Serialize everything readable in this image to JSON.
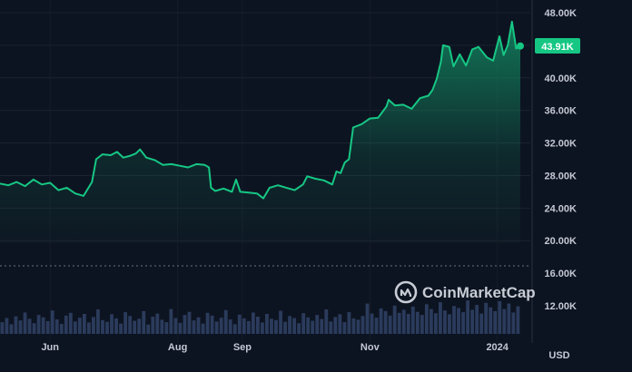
{
  "chart_data": {
    "type": "area",
    "currency_label": "USD",
    "watermark": "CoinMarketCap",
    "accent_color": "#16c784",
    "background_color": "#0d1421",
    "last_price_label": "43.91K",
    "last_price": 43910,
    "y_ticks": [
      "48.00K",
      "44.00K",
      "40.00K",
      "36.00K",
      "32.00K",
      "28.00K",
      "24.00K",
      "20.00K",
      "16.00K",
      "12.00K"
    ],
    "y_tick_values": [
      48000,
      44000,
      40000,
      36000,
      32000,
      28000,
      24000,
      20000,
      16000,
      12000
    ],
    "x_ticks": [
      "Jun",
      "Aug",
      "Sep",
      "Nov",
      "2024"
    ],
    "x_tick_dates": [
      "2023-06-01",
      "2023-08-01",
      "2023-09-01",
      "2023-11-01",
      "2024-01-01"
    ],
    "x_range": [
      "2023-05-08",
      "2024-01-12"
    ],
    "price_range": [
      18000,
      48500
    ],
    "grid": true,
    "series": [
      {
        "points": [
          [
            "2023-05-08",
            27000
          ],
          [
            "2023-05-12",
            26800
          ],
          [
            "2023-05-16",
            27200
          ],
          [
            "2023-05-20",
            26700
          ],
          [
            "2023-05-24",
            27500
          ],
          [
            "2023-05-28",
            26900
          ],
          [
            "2023-06-01",
            27100
          ],
          [
            "2023-06-05",
            26200
          ],
          [
            "2023-06-09",
            26500
          ],
          [
            "2023-06-13",
            25800
          ],
          [
            "2023-06-17",
            25500
          ],
          [
            "2023-06-21",
            27200
          ],
          [
            "2023-06-23",
            30000
          ],
          [
            "2023-06-26",
            30600
          ],
          [
            "2023-06-30",
            30500
          ],
          [
            "2023-07-03",
            30900
          ],
          [
            "2023-07-06",
            30200
          ],
          [
            "2023-07-09",
            30400
          ],
          [
            "2023-07-12",
            30700
          ],
          [
            "2023-07-14",
            31200
          ],
          [
            "2023-07-17",
            30200
          ],
          [
            "2023-07-21",
            29900
          ],
          [
            "2023-07-25",
            29300
          ],
          [
            "2023-07-29",
            29400
          ],
          [
            "2023-08-02",
            29200
          ],
          [
            "2023-08-06",
            29000
          ],
          [
            "2023-08-10",
            29400
          ],
          [
            "2023-08-14",
            29300
          ],
          [
            "2023-08-16",
            29000
          ],
          [
            "2023-08-17",
            26500
          ],
          [
            "2023-08-19",
            26100
          ],
          [
            "2023-08-23",
            26400
          ],
          [
            "2023-08-27",
            26000
          ],
          [
            "2023-08-29",
            27500
          ],
          [
            "2023-08-31",
            26000
          ],
          [
            "2023-09-04",
            25900
          ],
          [
            "2023-09-08",
            25800
          ],
          [
            "2023-09-11",
            25200
          ],
          [
            "2023-09-14",
            26500
          ],
          [
            "2023-09-18",
            26800
          ],
          [
            "2023-09-22",
            26500
          ],
          [
            "2023-09-26",
            26200
          ],
          [
            "2023-09-30",
            26900
          ],
          [
            "2023-10-02",
            27900
          ],
          [
            "2023-10-06",
            27600
          ],
          [
            "2023-10-10",
            27400
          ],
          [
            "2023-10-14",
            26900
          ],
          [
            "2023-10-16",
            28500
          ],
          [
            "2023-10-18",
            28300
          ],
          [
            "2023-10-20",
            29600
          ],
          [
            "2023-10-22",
            30000
          ],
          [
            "2023-10-24",
            33900
          ],
          [
            "2023-10-28",
            34300
          ],
          [
            "2023-11-01",
            35000
          ],
          [
            "2023-11-05",
            35100
          ],
          [
            "2023-11-09",
            36500
          ],
          [
            "2023-11-10",
            37300
          ],
          [
            "2023-11-13",
            36600
          ],
          [
            "2023-11-17",
            36700
          ],
          [
            "2023-11-21",
            36200
          ],
          [
            "2023-11-25",
            37500
          ],
          [
            "2023-11-29",
            37800
          ],
          [
            "2023-12-01",
            38500
          ],
          [
            "2023-12-03",
            39900
          ],
          [
            "2023-12-05",
            42000
          ],
          [
            "2023-12-06",
            44000
          ],
          [
            "2023-12-09",
            43800
          ],
          [
            "2023-12-11",
            41400
          ],
          [
            "2023-12-14",
            42900
          ],
          [
            "2023-12-17",
            41500
          ],
          [
            "2023-12-20",
            43500
          ],
          [
            "2023-12-23",
            43800
          ],
          [
            "2023-12-27",
            42500
          ],
          [
            "2023-12-30",
            42100
          ],
          [
            "2024-01-02",
            45100
          ],
          [
            "2024-01-04",
            42800
          ],
          [
            "2024-01-06",
            44000
          ],
          [
            "2024-01-08",
            46900
          ],
          [
            "2024-01-10",
            43600
          ],
          [
            "2024-01-12",
            43910
          ]
        ]
      }
    ],
    "volume": [
      34,
      46,
      28,
      51,
      39,
      62,
      44,
      31,
      55,
      48,
      37,
      68,
      42,
      29,
      53,
      61,
      36,
      47,
      58,
      33,
      49,
      71,
      40,
      35,
      57,
      45,
      30,
      63,
      52,
      38,
      44,
      66,
      27,
      50,
      59,
      41,
      34,
      72,
      46,
      32,
      55,
      64,
      39,
      48,
      30,
      61,
      53,
      36,
      47,
      69,
      42,
      28,
      56,
      45,
      37,
      62,
      50,
      33,
      58,
      44,
      40,
      67,
      35,
      52,
      46,
      31,
      60,
      48,
      38,
      55,
      43,
      71,
      36,
      49,
      57,
      34,
      63,
      45,
      41,
      52,
      88,
      59,
      47,
      74,
      66,
      53,
      82,
      61,
      70,
      58,
      79,
      64,
      55,
      86,
      72,
      60,
      92,
      68,
      57,
      81,
      75,
      63,
      97,
      70,
      84,
      59,
      90,
      77,
      66,
      95,
      72,
      88,
      62,
      80
    ]
  }
}
